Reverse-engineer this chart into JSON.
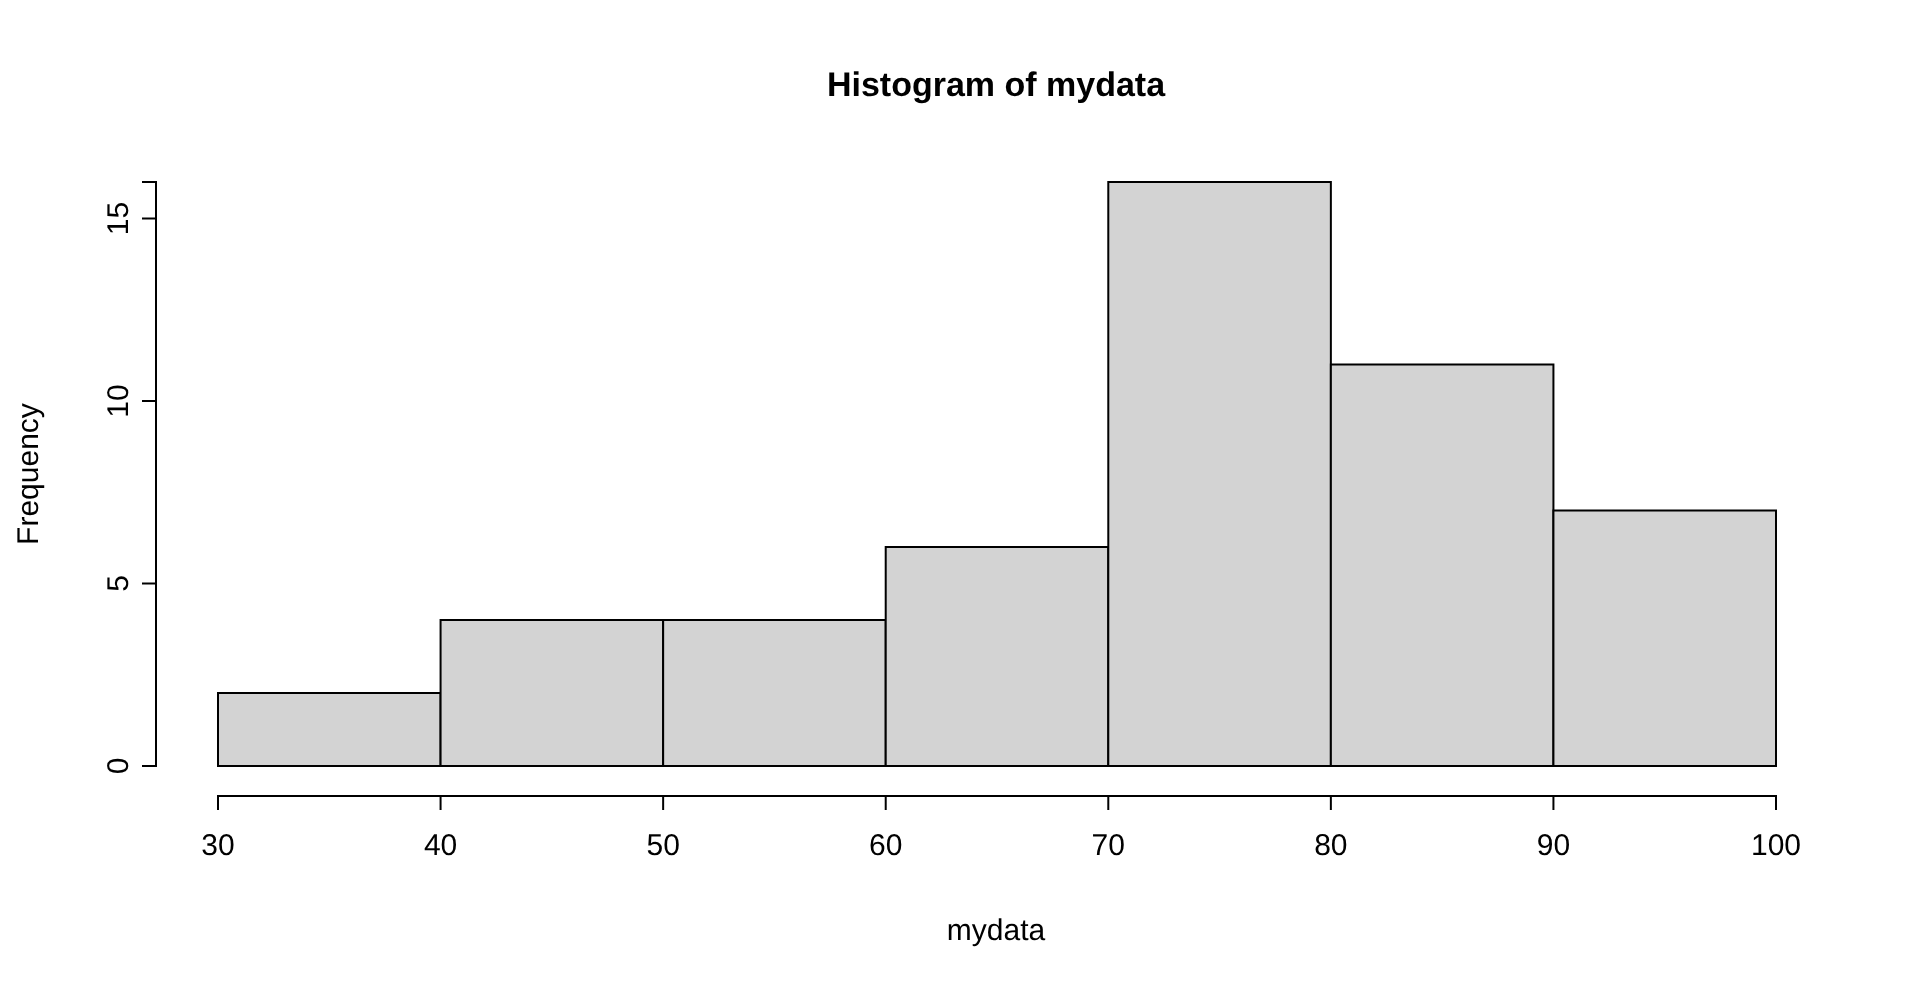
{
  "chart_data": {
    "type": "histogram",
    "title": "Histogram of mydata",
    "xlabel": "mydata",
    "ylabel": "Frequency",
    "bins": [
      30,
      40,
      50,
      60,
      70,
      80,
      90,
      100
    ],
    "values": [
      2,
      4,
      4,
      6,
      16,
      11,
      7
    ],
    "color": "#d3d3d3",
    "xlim": [
      30,
      100
    ],
    "xticks": [
      30,
      40,
      50,
      60,
      70,
      80,
      90,
      100
    ],
    "ylim": [
      0,
      16
    ],
    "yticks": [
      0,
      5,
      10,
      15
    ],
    "grid": false
  }
}
